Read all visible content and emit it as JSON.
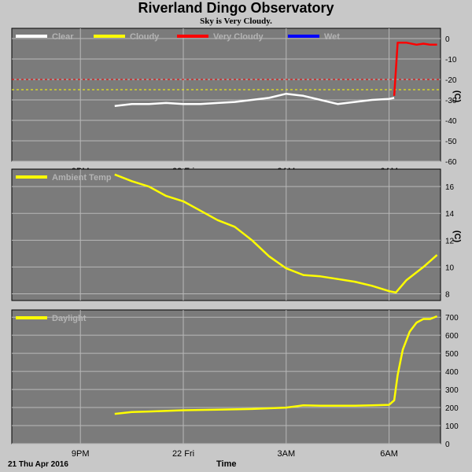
{
  "header": {
    "title": "Riverland Dingo Observatory",
    "subtitle": "Sky is Very Cloudy."
  },
  "footer": {
    "date": "21 Thu Apr 2016",
    "xlabel": "Time"
  },
  "colors": {
    "background": "#c8c8c8",
    "panel": "#7b7b7b",
    "grid": "#b8b8b8",
    "clear": "#ffffff",
    "cloudy": "#ffff00",
    "very_cloudy": "#ff0000",
    "wet": "#0000ff"
  },
  "chart_data": [
    {
      "type": "line",
      "panel": "sky",
      "legend": [
        {
          "name": "Clear",
          "color": "#ffffff"
        },
        {
          "name": "Cloudy",
          "color": "#ffff00"
        },
        {
          "name": "Very Cloudy",
          "color": "#ff0000"
        },
        {
          "name": "Wet",
          "color": "#0000ff"
        }
      ],
      "ylabel": "(C)",
      "ylim": [
        -60,
        5
      ],
      "yticks": [
        0,
        -10,
        -20,
        -30,
        -40,
        -50,
        -60
      ],
      "thresholds": [
        {
          "value": -20,
          "color": "#ff0000"
        },
        {
          "value": -25,
          "color": "#ffff00"
        }
      ],
      "xlim": [
        19.0,
        31.5
      ],
      "xticks": [
        {
          "value": 21,
          "label": "9PM"
        },
        {
          "value": 24,
          "label": "22 Fri"
        },
        {
          "value": 27,
          "label": "3AM"
        },
        {
          "value": 30,
          "label": "6AM"
        }
      ],
      "series": [
        {
          "name": "Clear",
          "color": "#ffffff",
          "x": [
            22.0,
            22.5,
            23.0,
            23.5,
            24.0,
            24.5,
            25.0,
            25.5,
            26.0,
            26.5,
            27.0,
            27.5,
            28.0,
            28.5,
            29.0,
            29.5,
            30.0,
            30.15
          ],
          "y": [
            -33,
            -32,
            -32,
            -31.5,
            -32,
            -32,
            -31.5,
            -31,
            -30,
            -29,
            -27,
            -28,
            -30,
            -32,
            -31,
            -30,
            -29.5,
            -29
          ]
        },
        {
          "name": "Very Cloudy",
          "color": "#ff0000",
          "x": [
            30.15,
            30.25,
            30.5,
            30.8,
            31.0,
            31.2,
            31.4
          ],
          "y": [
            -28,
            -2,
            -2,
            -3,
            -2.5,
            -3,
            -3
          ]
        }
      ]
    },
    {
      "type": "line",
      "panel": "temperature",
      "legend": [
        {
          "name": "Ambient Temp",
          "color": "#ffff00"
        }
      ],
      "ylabel": "(C)",
      "ylim": [
        7.5,
        17.3
      ],
      "yticks": [
        8,
        10,
        12,
        14,
        16
      ],
      "xlim": [
        19.0,
        31.5
      ],
      "xticks": [
        {
          "value": 21,
          "label": ""
        },
        {
          "value": 24,
          "label": ""
        },
        {
          "value": 27,
          "label": ""
        },
        {
          "value": 30,
          "label": ""
        }
      ],
      "series": [
        {
          "name": "Ambient Temp",
          "color": "#ffff00",
          "x": [
            22.0,
            22.5,
            23.0,
            23.5,
            24.0,
            24.5,
            25.0,
            25.5,
            26.0,
            26.5,
            27.0,
            27.5,
            28.0,
            28.5,
            29.0,
            29.5,
            30.0,
            30.2,
            30.5,
            31.0,
            31.4
          ],
          "y": [
            16.9,
            16.4,
            16.0,
            15.3,
            14.9,
            14.2,
            13.5,
            13.0,
            12.0,
            10.8,
            9.9,
            9.4,
            9.3,
            9.1,
            8.9,
            8.6,
            8.2,
            8.1,
            9.0,
            10.0,
            10.9
          ]
        }
      ]
    },
    {
      "type": "line",
      "panel": "daylight",
      "legend": [
        {
          "name": "Daylight",
          "color": "#ffff00"
        }
      ],
      "ylim": [
        0,
        740
      ],
      "yticks": [
        0,
        100,
        200,
        300,
        400,
        500,
        600,
        700
      ],
      "xlim": [
        19.0,
        31.5
      ],
      "xticks": [
        {
          "value": 21,
          "label": "9PM"
        },
        {
          "value": 24,
          "label": "22 Fri"
        },
        {
          "value": 27,
          "label": "3AM"
        },
        {
          "value": 30,
          "label": "6AM"
        }
      ],
      "series": [
        {
          "name": "Daylight",
          "color": "#ffff00",
          "x": [
            22.0,
            22.5,
            23.0,
            24.0,
            25.0,
            26.0,
            27.0,
            27.5,
            28.0,
            29.0,
            29.5,
            30.0,
            30.15,
            30.25,
            30.4,
            30.6,
            30.8,
            31.0,
            31.2,
            31.4
          ],
          "y": [
            165,
            175,
            178,
            185,
            188,
            192,
            200,
            212,
            210,
            210,
            212,
            215,
            240,
            380,
            520,
            620,
            670,
            690,
            690,
            705
          ]
        }
      ]
    }
  ]
}
